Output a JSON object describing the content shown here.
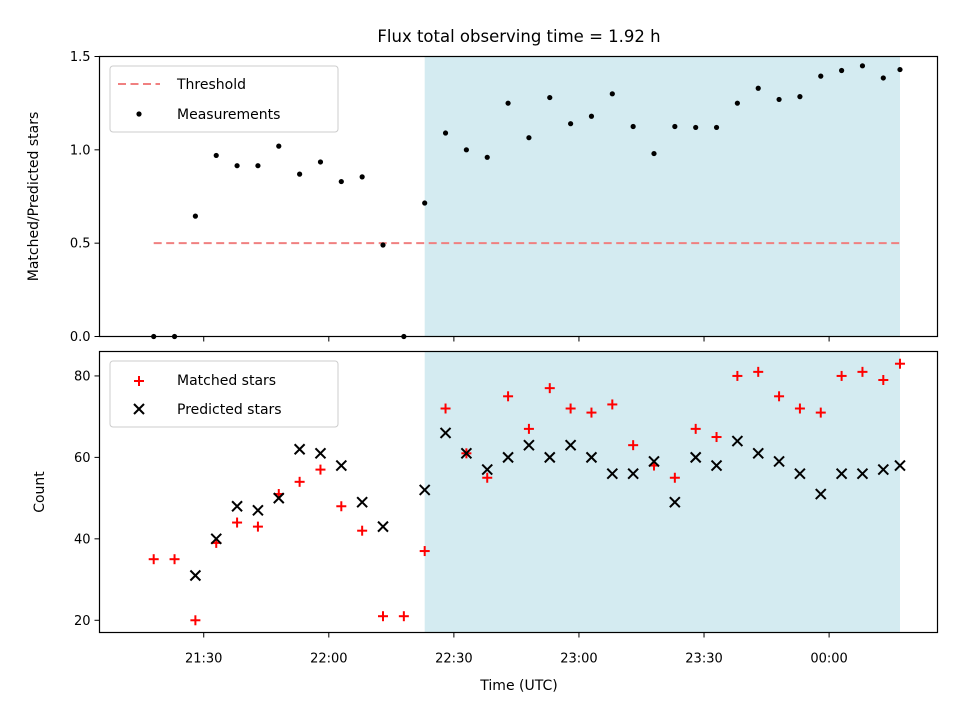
{
  "chart_data": [
    {
      "type": "scatter",
      "title": "Flux total observing time = 1.92 h",
      "xlabel": "",
      "ylabel": "Matched/Predicted stars",
      "ylim": [
        0.0,
        1.5
      ],
      "yticks": [
        "0.0",
        "0.5",
        "1.0",
        "1.5"
      ],
      "grid": false,
      "legend_position": "top-left",
      "shaded_interval": [
        "22:23",
        "00:17"
      ],
      "shaded_color": "#d4ebf1",
      "threshold": {
        "name": "Threshold",
        "value": 0.5,
        "x_range": [
          "21:18",
          "00:17"
        ],
        "color": "#f08080"
      },
      "series": [
        {
          "name": "Measurements",
          "color": "#000000",
          "points": [
            [
              "21:18",
              0.0
            ],
            [
              "21:23",
              0.0
            ],
            [
              "21:28",
              0.645
            ],
            [
              "21:33",
              0.97
            ],
            [
              "21:38",
              0.915
            ],
            [
              "21:43",
              0.915
            ],
            [
              "21:48",
              1.02
            ],
            [
              "21:53",
              0.87
            ],
            [
              "21:58",
              0.935
            ],
            [
              "22:03",
              0.83
            ],
            [
              "22:08",
              0.855
            ],
            [
              "22:13",
              0.49
            ],
            [
              "22:18",
              0.0
            ],
            [
              "22:23",
              0.715
            ],
            [
              "22:28",
              1.09
            ],
            [
              "22:33",
              1.0
            ],
            [
              "22:38",
              0.96
            ],
            [
              "22:43",
              1.25
            ],
            [
              "22:48",
              1.065
            ],
            [
              "22:53",
              1.28
            ],
            [
              "22:58",
              1.14
            ],
            [
              "23:03",
              1.18
            ],
            [
              "23:08",
              1.3
            ],
            [
              "23:13",
              1.125
            ],
            [
              "23:18",
              0.98
            ],
            [
              "23:23",
              1.125
            ],
            [
              "23:28",
              1.12
            ],
            [
              "23:33",
              1.12
            ],
            [
              "23:38",
              1.25
            ],
            [
              "23:43",
              1.33
            ],
            [
              "23:48",
              1.27
            ],
            [
              "23:53",
              1.285
            ],
            [
              "23:58",
              1.395
            ],
            [
              "00:03",
              1.425
            ],
            [
              "00:08",
              1.45
            ],
            [
              "00:13",
              1.385
            ],
            [
              "00:17",
              1.43
            ]
          ]
        }
      ]
    },
    {
      "type": "scatter",
      "title": "",
      "xlabel": "Time (UTC)",
      "ylabel": "Count",
      "ylim": [
        17,
        86
      ],
      "yticks": [
        "20",
        "40",
        "60",
        "80"
      ],
      "xticks": [
        "21:30",
        "22:00",
        "22:30",
        "23:00",
        "23:30",
        "00:00"
      ],
      "x_range": [
        "21:05",
        "00:26"
      ],
      "grid": false,
      "legend_position": "top-left",
      "shaded_interval": [
        "22:23",
        "00:17"
      ],
      "series": [
        {
          "name": "Matched stars",
          "marker": "+",
          "color": "#ff0000",
          "points": [
            [
              "21:18",
              35
            ],
            [
              "21:23",
              35
            ],
            [
              "21:28",
              20
            ],
            [
              "21:33",
              39
            ],
            [
              "21:38",
              44
            ],
            [
              "21:43",
              43
            ],
            [
              "21:48",
              51
            ],
            [
              "21:53",
              54
            ],
            [
              "21:58",
              57
            ],
            [
              "22:03",
              48
            ],
            [
              "22:08",
              42
            ],
            [
              "22:13",
              21
            ],
            [
              "22:18",
              21
            ],
            [
              "22:23",
              37
            ],
            [
              "22:28",
              72
            ],
            [
              "22:33",
              61
            ],
            [
              "22:38",
              55
            ],
            [
              "22:43",
              75
            ],
            [
              "22:48",
              67
            ],
            [
              "22:53",
              77
            ],
            [
              "22:58",
              72
            ],
            [
              "23:03",
              71
            ],
            [
              "23:08",
              73
            ],
            [
              "23:13",
              63
            ],
            [
              "23:18",
              58
            ],
            [
              "23:23",
              55
            ],
            [
              "23:28",
              67
            ],
            [
              "23:33",
              65
            ],
            [
              "23:38",
              80
            ],
            [
              "23:43",
              81
            ],
            [
              "23:48",
              75
            ],
            [
              "23:53",
              72
            ],
            [
              "23:58",
              71
            ],
            [
              "00:03",
              80
            ],
            [
              "00:08",
              81
            ],
            [
              "00:13",
              79
            ],
            [
              "00:17",
              83
            ]
          ]
        },
        {
          "name": "Predicted stars",
          "marker": "x",
          "color": "#000000",
          "points": [
            [
              "21:28",
              31
            ],
            [
              "21:33",
              40
            ],
            [
              "21:38",
              48
            ],
            [
              "21:43",
              47
            ],
            [
              "21:48",
              50
            ],
            [
              "21:53",
              62
            ],
            [
              "21:58",
              61
            ],
            [
              "22:03",
              58
            ],
            [
              "22:08",
              49
            ],
            [
              "22:13",
              43
            ],
            [
              "22:23",
              52
            ],
            [
              "22:28",
              66
            ],
            [
              "22:33",
              61
            ],
            [
              "22:38",
              57
            ],
            [
              "22:43",
              60
            ],
            [
              "22:48",
              63
            ],
            [
              "22:53",
              60
            ],
            [
              "22:58",
              63
            ],
            [
              "23:03",
              60
            ],
            [
              "23:08",
              56
            ],
            [
              "23:13",
              56
            ],
            [
              "23:18",
              59
            ],
            [
              "23:23",
              49
            ],
            [
              "23:28",
              60
            ],
            [
              "23:33",
              58
            ],
            [
              "23:38",
              64
            ],
            [
              "23:43",
              61
            ],
            [
              "23:48",
              59
            ],
            [
              "23:53",
              56
            ],
            [
              "23:58",
              51
            ],
            [
              "00:03",
              56
            ],
            [
              "00:08",
              56
            ],
            [
              "00:13",
              57
            ],
            [
              "00:17",
              58
            ]
          ]
        }
      ]
    }
  ]
}
